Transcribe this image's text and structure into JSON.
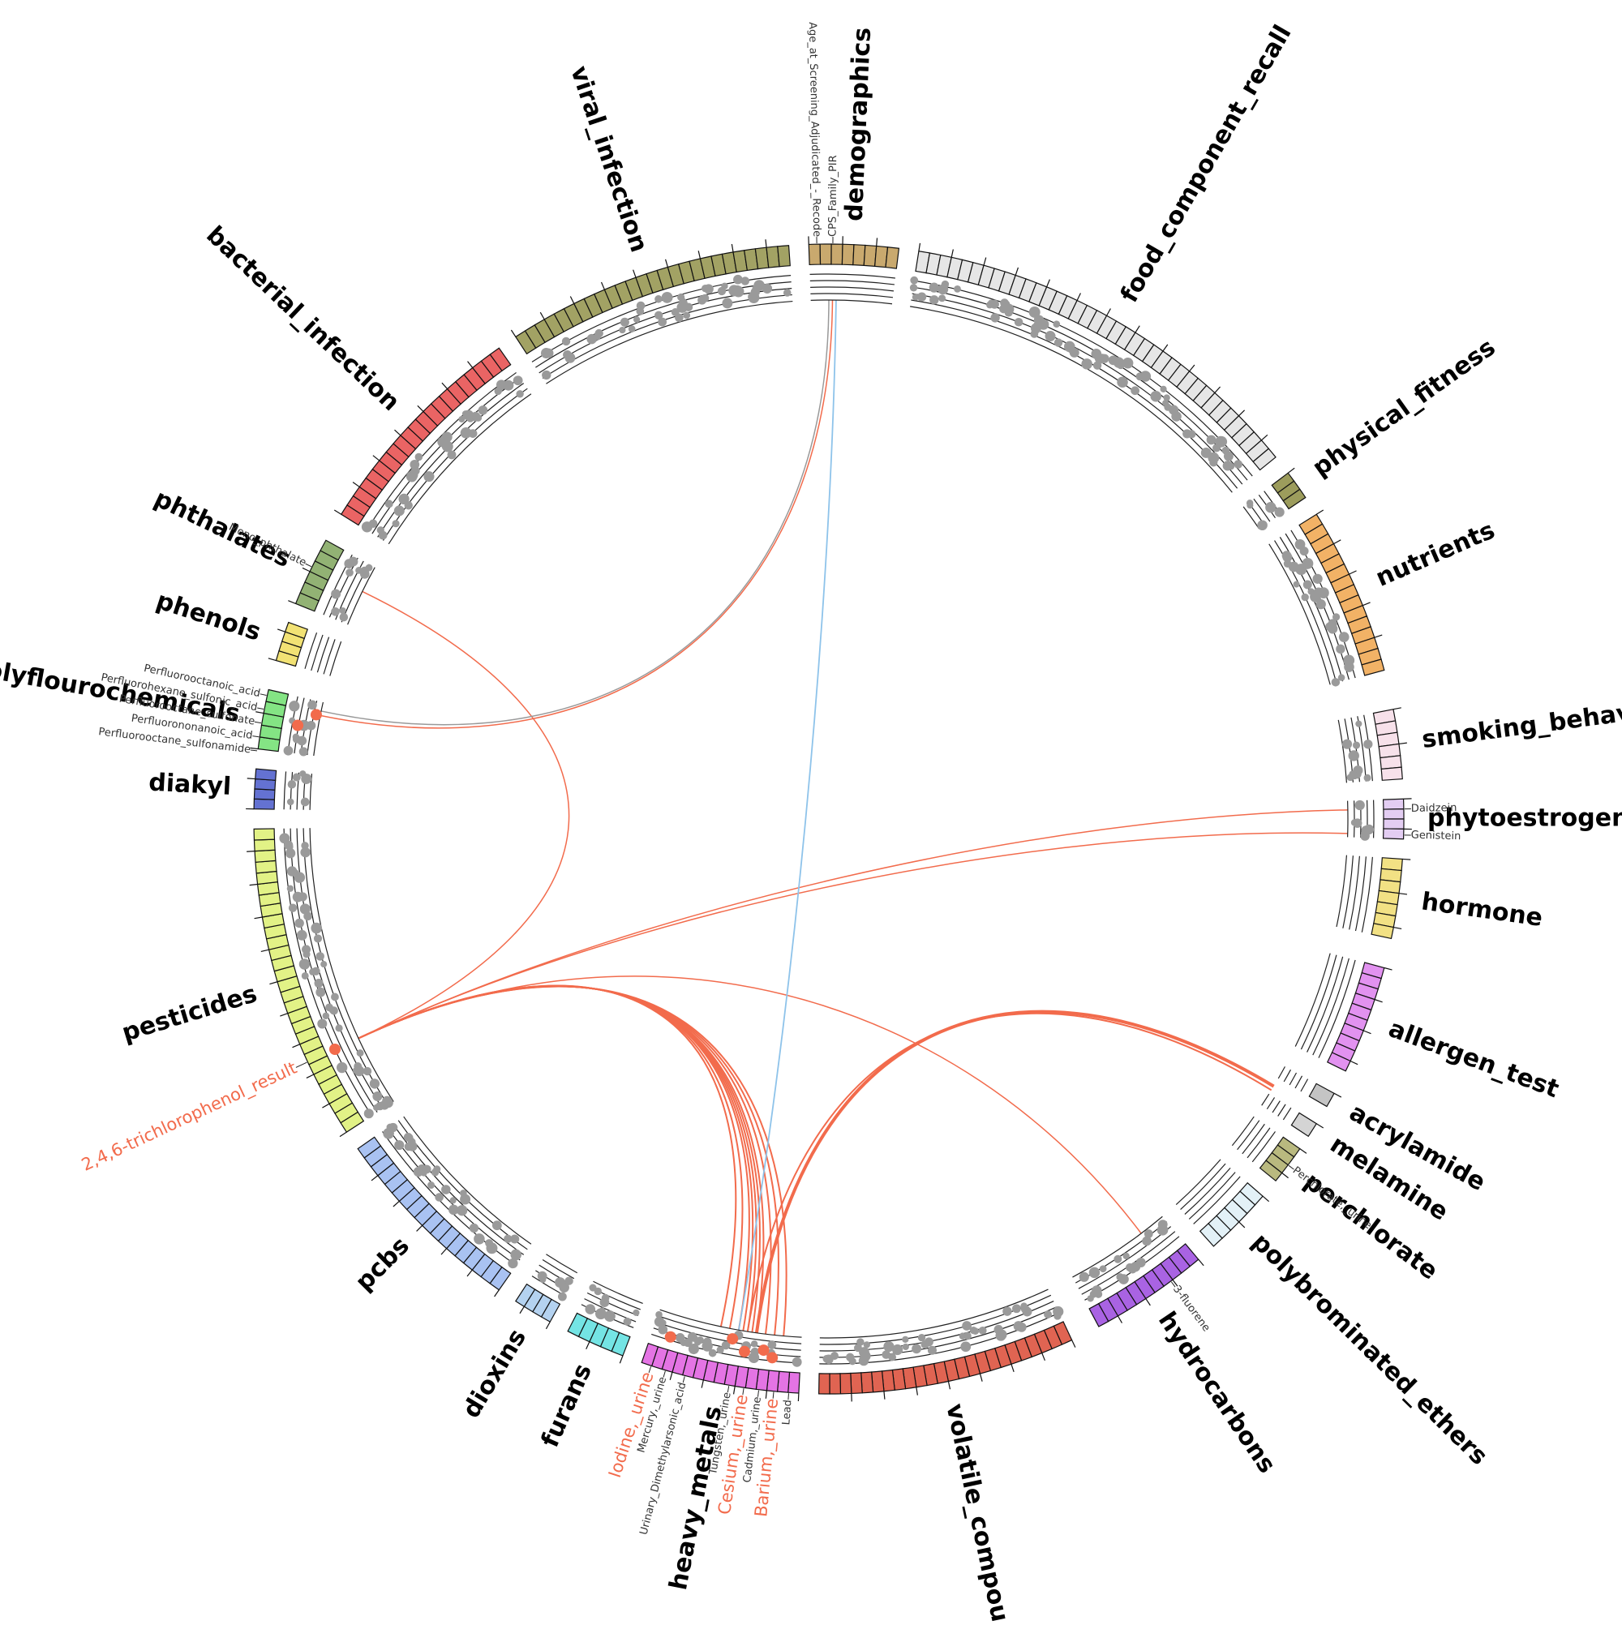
{
  "sectors": [
    {
      "label": "demographics",
      "color": "#c9a96e"
    },
    {
      "label": "food_component_recall",
      "color": "#e6e6e6"
    },
    {
      "label": "physical_fitness",
      "color": "#9c9c5c"
    },
    {
      "label": "nutrients",
      "color": "#f2b266"
    },
    {
      "label": "smoking_behavior",
      "color": "#f7e1ea"
    },
    {
      "label": "phytoestrogens",
      "color": "#e3cdf2"
    },
    {
      "label": "hormone",
      "color": "#f2e184"
    },
    {
      "label": "allergen_test",
      "color": "#e292f0"
    },
    {
      "label": "acrylamide",
      "color": "#c4c4c4"
    },
    {
      "label": "melamine",
      "color": "#d4d4d4"
    },
    {
      "label": "perchlorate",
      "color": "#b9b97f"
    },
    {
      "label": "polybrominated_ethers",
      "color": "#e3f1f7"
    },
    {
      "label": "hydrocarbons",
      "color": "#a963e3"
    },
    {
      "label": "volatile_compounds",
      "color": "#e06452"
    },
    {
      "label": "heavy_metals",
      "color": "#e474e4"
    },
    {
      "label": "furans",
      "color": "#74e4e4"
    },
    {
      "label": "dioxins",
      "color": "#b4d2f0"
    },
    {
      "label": "pcbs",
      "color": "#a9c2f2"
    },
    {
      "label": "pesticides",
      "color": "#e2f286"
    },
    {
      "label": "diakyl",
      "color": "#6472d2"
    },
    {
      "label": "polyflourochemicals",
      "color": "#84e484"
    },
    {
      "label": "phenols",
      "color": "#f2e274"
    },
    {
      "label": "phthalates",
      "color": "#92b274"
    },
    {
      "label": "bacterial_infection",
      "color": "#ea6464"
    },
    {
      "label": "viral_infection",
      "color": "#a2a264"
    }
  ],
  "variable_labels": [
    {
      "text": "Age_at_Screening_Adjudicated_-_Recode",
      "color": "#333333"
    },
    {
      "text": "CPS_Family_PIR",
      "color": "#333333"
    },
    {
      "text": "Daidzein",
      "color": "#333333"
    },
    {
      "text": "Genistein",
      "color": "#333333"
    },
    {
      "text": "Perchlorate,_urine",
      "color": "#333333"
    },
    {
      "text": "3-fluorene",
      "color": "#333333"
    },
    {
      "text": "Lead",
      "color": "#333333"
    },
    {
      "text": "Barium,_urine",
      "color": "#f26b4c"
    },
    {
      "text": "Cadmium,_urine",
      "color": "#333333"
    },
    {
      "text": "Cesium,_urine",
      "color": "#f26b4c"
    },
    {
      "text": "Tungsten,_urine",
      "color": "#333333"
    },
    {
      "text": "Urinary_Dimethylarsonic_acid",
      "color": "#333333"
    },
    {
      "text": "Mercury,_urine",
      "color": "#333333"
    },
    {
      "text": "Iodine,_urine",
      "color": "#f26b4c"
    },
    {
      "text": "2,4,6-trichlorophenol_result",
      "color": "#f26b4c"
    },
    {
      "text": "Perfluorooctane_sulfonamide",
      "color": "#333333"
    },
    {
      "text": "Perfluorononanoic_acid",
      "color": "#333333"
    },
    {
      "text": "Perfluorooctane_sulfonate",
      "color": "#333333"
    },
    {
      "text": "Perfluorohexane_sulfonic_acid",
      "color": "#333333"
    },
    {
      "text": "Perfluorooctanoic_acid",
      "color": "#333333"
    },
    {
      "text": "Mono_phthalate",
      "color": "#333333"
    }
  ]
}
